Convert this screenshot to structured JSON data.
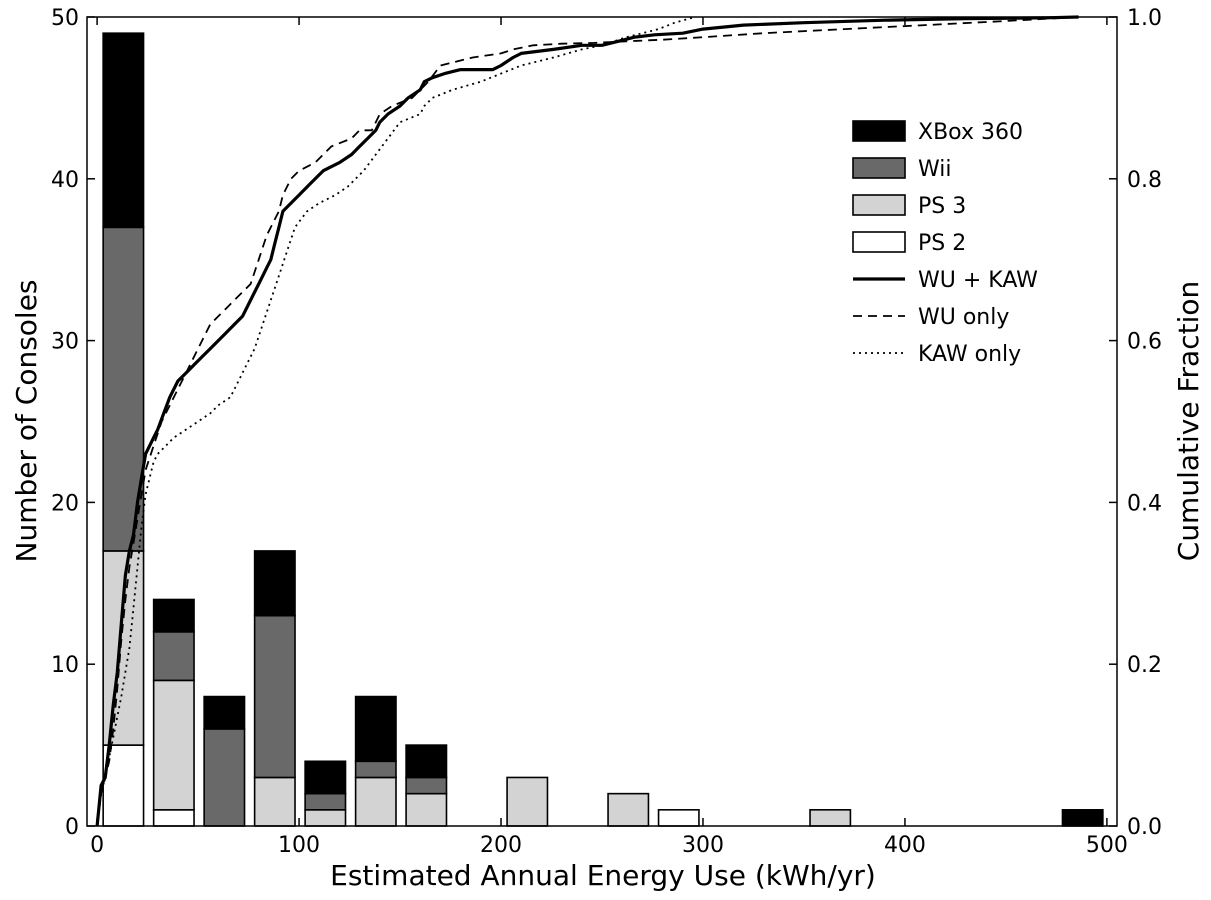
{
  "chart_data": {
    "type": "bar",
    "stacked": true,
    "xlabel": "Estimated Annual Energy Use (kWh/yr)",
    "ylabel": "Number of Consoles",
    "y2label": "Cumulative Fraction",
    "xlim": [
      -5,
      505
    ],
    "ylim": [
      0,
      50
    ],
    "y2lim": [
      0,
      1
    ],
    "xticks": [
      "0",
      "100",
      "200",
      "300",
      "400",
      "500"
    ],
    "yticks": [
      "0",
      "10",
      "20",
      "30",
      "40",
      "50"
    ],
    "y2ticks": [
      "0.0",
      "0.2",
      "0.4",
      "0.6",
      "0.8",
      "1.0"
    ],
    "legend_position": "upper-right",
    "bins": [
      {
        "start": 3,
        "end": 23
      },
      {
        "start": 28,
        "end": 48
      },
      {
        "start": 53,
        "end": 73
      },
      {
        "start": 78,
        "end": 98
      },
      {
        "start": 103,
        "end": 123
      },
      {
        "start": 128,
        "end": 148
      },
      {
        "start": 153,
        "end": 173
      },
      {
        "start": 203,
        "end": 223
      },
      {
        "start": 253,
        "end": 273
      },
      {
        "start": 278,
        "end": 298
      },
      {
        "start": 353,
        "end": 373
      },
      {
        "start": 478,
        "end": 498
      }
    ],
    "bar_series": [
      {
        "name": "PS 2",
        "color": "#ffffff",
        "values": [
          5,
          1,
          0,
          0,
          0,
          0,
          0,
          0,
          0,
          1,
          0,
          0
        ]
      },
      {
        "name": "PS 3",
        "color": "#d3d3d3",
        "values": [
          12,
          8,
          0,
          3,
          1,
          3,
          2,
          3,
          2,
          0,
          1,
          0
        ]
      },
      {
        "name": "Wii",
        "color": "#696969",
        "values": [
          20,
          3,
          6,
          10,
          1,
          1,
          1,
          0,
          0,
          0,
          0,
          0
        ]
      },
      {
        "name": "XBox 360",
        "color": "#000000",
        "values": [
          12,
          2,
          2,
          4,
          2,
          4,
          2,
          0,
          0,
          0,
          0,
          1
        ]
      }
    ],
    "line_series": [
      {
        "name": "WU + KAW",
        "style": "solid",
        "x": [
          0,
          2,
          4,
          6,
          8,
          10,
          12,
          14,
          16,
          18,
          20,
          22,
          24,
          26,
          28,
          30,
          33,
          36,
          40,
          44,
          48,
          52,
          56,
          60,
          64,
          68,
          72,
          76,
          78,
          80,
          82,
          84,
          86,
          88,
          90,
          92,
          96,
          100,
          104,
          108,
          112,
          120,
          126,
          130,
          134,
          138,
          140,
          144,
          150,
          154,
          160,
          162,
          166,
          172,
          180,
          196,
          200,
          206,
          210,
          226,
          240,
          250,
          258,
          266,
          276,
          290,
          300,
          320,
          350,
          390,
          430,
          470,
          486
        ],
        "y": [
          0.0,
          0.05,
          0.06,
          0.1,
          0.15,
          0.19,
          0.25,
          0.31,
          0.34,
          0.36,
          0.4,
          0.43,
          0.46,
          0.47,
          0.48,
          0.49,
          0.51,
          0.53,
          0.55,
          0.56,
          0.57,
          0.58,
          0.59,
          0.6,
          0.61,
          0.62,
          0.63,
          0.65,
          0.66,
          0.67,
          0.68,
          0.69,
          0.7,
          0.72,
          0.74,
          0.76,
          0.77,
          0.78,
          0.79,
          0.8,
          0.81,
          0.82,
          0.83,
          0.84,
          0.85,
          0.86,
          0.87,
          0.88,
          0.89,
          0.9,
          0.91,
          0.92,
          0.925,
          0.93,
          0.935,
          0.935,
          0.94,
          0.95,
          0.955,
          0.96,
          0.965,
          0.965,
          0.97,
          0.975,
          0.978,
          0.98,
          0.985,
          0.99,
          0.993,
          0.996,
          0.998,
          0.999,
          1.0
        ]
      },
      {
        "name": "WU only",
        "style": "dashed",
        "x": [
          0,
          2,
          4,
          6,
          8,
          10,
          12,
          14,
          16,
          18,
          20,
          22,
          24,
          28,
          32,
          36,
          40,
          44,
          48,
          52,
          56,
          60,
          64,
          68,
          72,
          76,
          80,
          84,
          88,
          90,
          92,
          96,
          100,
          108,
          116,
          126,
          130,
          136,
          140,
          146,
          156,
          164,
          170,
          186,
          200,
          206,
          216,
          230,
          246,
          262,
          280,
          300,
          330,
          370,
          410,
          450,
          486
        ],
        "y": [
          0.0,
          0.04,
          0.06,
          0.08,
          0.12,
          0.17,
          0.23,
          0.28,
          0.32,
          0.35,
          0.38,
          0.41,
          0.44,
          0.47,
          0.5,
          0.52,
          0.54,
          0.56,
          0.58,
          0.6,
          0.62,
          0.63,
          0.64,
          0.65,
          0.66,
          0.67,
          0.7,
          0.73,
          0.75,
          0.76,
          0.78,
          0.8,
          0.81,
          0.82,
          0.84,
          0.85,
          0.86,
          0.86,
          0.88,
          0.89,
          0.9,
          0.92,
          0.94,
          0.95,
          0.955,
          0.96,
          0.965,
          0.967,
          0.968,
          0.97,
          0.972,
          0.975,
          0.98,
          0.985,
          0.99,
          0.995,
          1.0
        ]
      },
      {
        "name": "KAW only",
        "style": "dotted",
        "x": [
          0,
          2,
          4,
          8,
          12,
          16,
          18,
          20,
          22,
          24,
          26,
          28,
          30,
          34,
          38,
          44,
          50,
          56,
          60,
          66,
          70,
          74,
          78,
          82,
          86,
          90,
          94,
          98,
          104,
          110,
          118,
          124,
          128,
          132,
          138,
          144,
          150,
          160,
          162,
          166,
          176,
          190,
          200,
          210,
          226,
          240,
          250,
          256,
          262,
          270,
          278,
          286,
          296
        ],
        "y": [
          0.0,
          0.04,
          0.06,
          0.11,
          0.16,
          0.22,
          0.27,
          0.32,
          0.37,
          0.41,
          0.43,
          0.45,
          0.46,
          0.47,
          0.48,
          0.49,
          0.5,
          0.51,
          0.52,
          0.53,
          0.55,
          0.57,
          0.59,
          0.62,
          0.65,
          0.68,
          0.71,
          0.74,
          0.76,
          0.77,
          0.78,
          0.79,
          0.8,
          0.81,
          0.83,
          0.85,
          0.87,
          0.88,
          0.89,
          0.9,
          0.91,
          0.92,
          0.93,
          0.94,
          0.95,
          0.96,
          0.965,
          0.97,
          0.975,
          0.98,
          0.985,
          0.993,
          1.0
        ]
      }
    ],
    "legend": [
      "XBox 360",
      "Wii",
      "PS 3",
      "PS 2",
      "WU + KAW",
      "WU only",
      "KAW only"
    ]
  }
}
